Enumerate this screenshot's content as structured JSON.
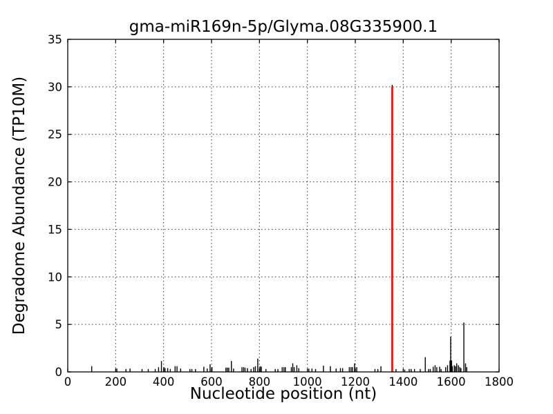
{
  "figure": {
    "title": "gma-miR169n-5p/Glyma.08G335900.1",
    "xlabel": "Nucleotide position (nt)",
    "ylabel": "Degradome Abundance (TP10M)"
  },
  "chart_data": {
    "type": "bar",
    "title": "gma-miR169n-5p/Glyma.08G335900.1",
    "xlabel": "Nucleotide position (nt)",
    "ylabel": "Degradome Abundance (TP10M)",
    "xlim": [
      0,
      1800
    ],
    "ylim": [
      0,
      35
    ],
    "xticks": [
      0,
      200,
      400,
      600,
      800,
      1000,
      1200,
      1400,
      1600,
      1800
    ],
    "yticks": [
      0,
      5,
      10,
      15,
      20,
      25,
      30,
      35
    ],
    "grid": "dotted",
    "legend": "none",
    "colors": {
      "signal": "#000000",
      "highlight": "#ff0000",
      "grid": "#333333",
      "frame": "#000000",
      "background": "#ffffff"
    },
    "highlight_peak": {
      "x": 1354,
      "height": 30,
      "meaning": "miRNA cleavage site"
    },
    "peaks": [
      [
        100,
        0.6
      ],
      [
        205,
        0.35
      ],
      [
        243,
        0.3
      ],
      [
        260,
        0.35
      ],
      [
        310,
        0.3
      ],
      [
        336,
        0.3
      ],
      [
        365,
        0.3
      ],
      [
        379,
        0.5
      ],
      [
        391,
        1.15
      ],
      [
        401,
        0.5
      ],
      [
        406,
        0.4
      ],
      [
        417,
        0.4
      ],
      [
        428,
        0.3
      ],
      [
        448,
        0.6
      ],
      [
        456,
        0.6
      ],
      [
        471,
        0.35
      ],
      [
        510,
        0.3
      ],
      [
        518,
        0.3
      ],
      [
        533,
        0.3
      ],
      [
        568,
        0.55
      ],
      [
        582,
        0.35
      ],
      [
        594,
        0.8
      ],
      [
        602,
        0.5
      ],
      [
        660,
        0.45
      ],
      [
        666,
        0.45
      ],
      [
        672,
        0.45
      ],
      [
        683,
        1.15
      ],
      [
        692,
        0.35
      ],
      [
        727,
        0.5
      ],
      [
        734,
        0.5
      ],
      [
        740,
        0.45
      ],
      [
        750,
        0.4
      ],
      [
        765,
        0.3
      ],
      [
        776,
        0.5
      ],
      [
        783,
        0.6
      ],
      [
        793,
        1.4
      ],
      [
        803,
        0.6
      ],
      [
        808,
        0.55
      ],
      [
        827,
        0.3
      ],
      [
        866,
        0.3
      ],
      [
        877,
        0.3
      ],
      [
        895,
        0.5
      ],
      [
        902,
        0.5
      ],
      [
        908,
        0.5
      ],
      [
        933,
        0.5
      ],
      [
        939,
        0.9
      ],
      [
        945,
        0.5
      ],
      [
        956,
        0.7
      ],
      [
        964,
        0.4
      ],
      [
        1006,
        0.35
      ],
      [
        1019,
        0.35
      ],
      [
        1034,
        0.3
      ],
      [
        1067,
        0.65
      ],
      [
        1096,
        0.6
      ],
      [
        1120,
        0.35
      ],
      [
        1138,
        0.4
      ],
      [
        1147,
        0.4
      ],
      [
        1175,
        0.5
      ],
      [
        1182,
        0.5
      ],
      [
        1188,
        0.5
      ],
      [
        1197,
        0.9
      ],
      [
        1206,
        0.5
      ],
      [
        1282,
        0.3
      ],
      [
        1294,
        0.3
      ],
      [
        1307,
        0.6
      ],
      [
        1370,
        0.3
      ],
      [
        1406,
        0.25
      ],
      [
        1425,
        0.3
      ],
      [
        1433,
        0.3
      ],
      [
        1447,
        0.3
      ],
      [
        1471,
        0.3
      ],
      [
        1492,
        1.55
      ],
      [
        1506,
        0.3
      ],
      [
        1513,
        0.3
      ],
      [
        1525,
        0.55
      ],
      [
        1533,
        0.7
      ],
      [
        1540,
        0.5
      ],
      [
        1552,
        0.55
      ],
      [
        1558,
        0.3
      ],
      [
        1577,
        0.5
      ],
      [
        1585,
        0.7
      ],
      [
        1595,
        1.2
      ],
      [
        1598,
        3.7
      ],
      [
        1602,
        1.2
      ],
      [
        1605,
        0.6
      ],
      [
        1613,
        0.7
      ],
      [
        1618,
        0.6
      ],
      [
        1623,
        0.9
      ],
      [
        1630,
        0.7
      ],
      [
        1636,
        0.5
      ],
      [
        1641,
        0.4
      ],
      [
        1653,
        5.2
      ],
      [
        1660,
        0.9
      ],
      [
        1665,
        0.5
      ]
    ]
  }
}
